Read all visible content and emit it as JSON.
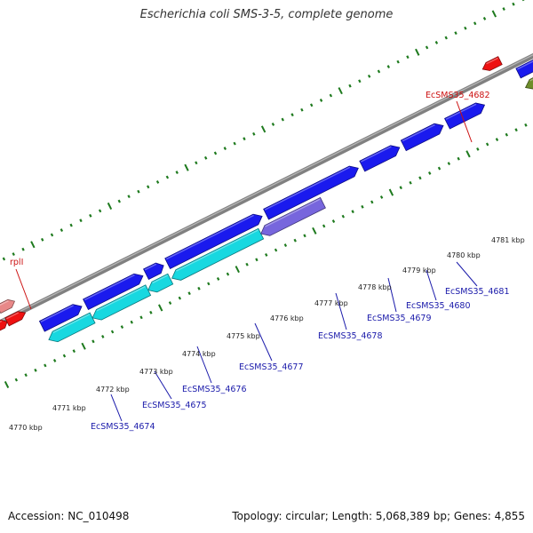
{
  "title": "Escherichia coli SMS-3-5, complete genome",
  "footer": {
    "accession": "Accession: NC_010498",
    "summary": "Topology: circular; Length: 5,068,389 bp; Genes: 4,855"
  },
  "colors": {
    "backbone": "#808080",
    "tick": "#1e7a1e",
    "forward_gene": "#1a1aee",
    "reverse_gene_cyan": "#18d8e0",
    "reverse_gene_purple": "#7766dd",
    "rna_red": "#ee1111",
    "rna_pink": "#e88888",
    "olive": "#6e8e2a",
    "label_blue": "#1a1aaa",
    "label_red": "#cc1111"
  },
  "scale_labels": [
    "4770 kbp",
    "4771 kbp",
    "4772 kbp",
    "4773 kbp",
    "4774 kbp",
    "4775 kbp",
    "4776 kbp",
    "4777 kbp",
    "4778 kbp",
    "4779 kbp",
    "4780 kbp",
    "4781 kbp"
  ],
  "gene_labels": [
    {
      "text": "EcSMS35_4674",
      "kind": "blue"
    },
    {
      "text": "EcSMS35_4675",
      "kind": "blue"
    },
    {
      "text": "EcSMS35_4676",
      "kind": "blue"
    },
    {
      "text": "EcSMS35_4677",
      "kind": "blue"
    },
    {
      "text": "EcSMS35_4678",
      "kind": "blue"
    },
    {
      "text": "EcSMS35_4679",
      "kind": "blue"
    },
    {
      "text": "EcSMS35_4680",
      "kind": "blue"
    },
    {
      "text": "EcSMS35_4681",
      "kind": "blue"
    },
    {
      "text": "EcSMS35_4682",
      "kind": "red"
    },
    {
      "text": "rplI",
      "kind": "red"
    }
  ]
}
